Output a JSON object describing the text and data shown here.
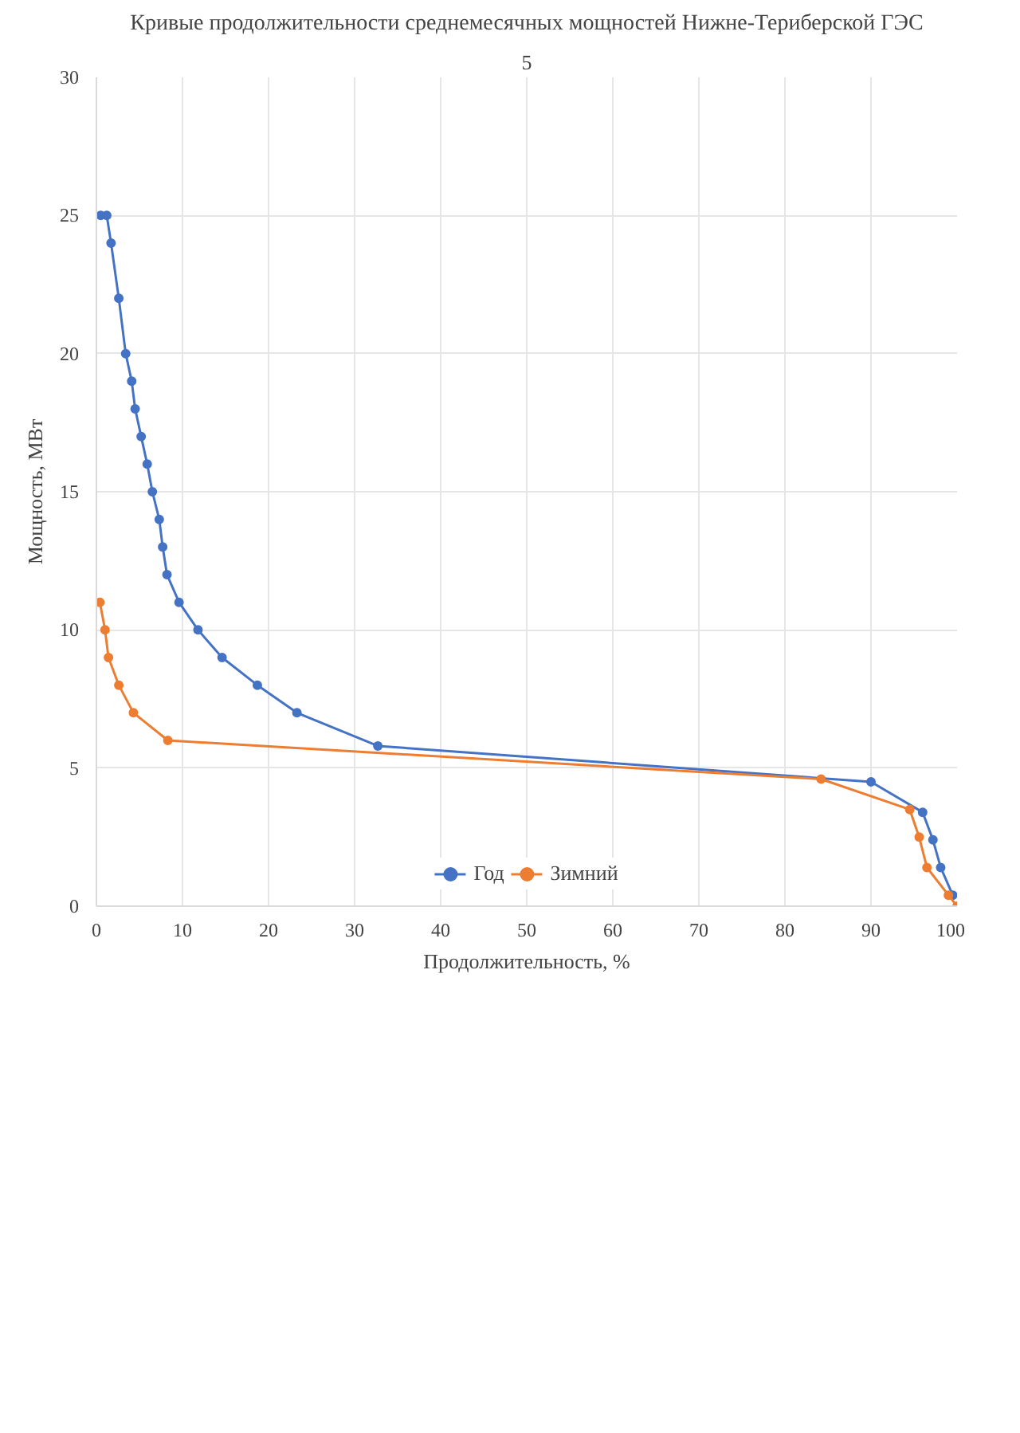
{
  "chart_data": {
    "type": "line",
    "title": "Кривые продолжительности среднемесячных мощностей Нижне-Териберской ГЭС",
    "xlabel": "Продолжительность, %",
    "ylabel": "Мощность, МВт",
    "annotations": [
      "5"
    ],
    "xlim": [
      0,
      100
    ],
    "xticks": [
      0,
      10,
      20,
      30,
      40,
      50,
      60,
      70,
      80,
      90,
      100
    ],
    "ylim": [
      0,
      30
    ],
    "yticks": [
      0,
      5,
      10,
      15,
      20,
      25,
      30
    ],
    "grid": true,
    "legend": "bottom",
    "marker": "circle",
    "line_style": "solid",
    "series": [
      {
        "name": "Год",
        "color": "#4472c4",
        "x": [
          0.5,
          1.2,
          1.7,
          2.6,
          3.4,
          4.1,
          4.5,
          5.2,
          5.9,
          6.5,
          7.3,
          7.7,
          8.2,
          9.6,
          11.8,
          14.6,
          18.7,
          23.3,
          32.7,
          90,
          96,
          97.2,
          98.1,
          99.5
        ],
        "values": [
          25,
          25,
          24,
          22,
          20,
          19,
          18,
          17,
          16,
          15,
          14,
          13,
          12,
          11,
          10,
          9,
          8,
          7,
          5.8,
          4.5,
          3.4,
          2.4,
          1.4,
          0.4
        ]
      },
      {
        "name": "Зимний",
        "color": "#ed7d31",
        "x": [
          0.4,
          1,
          1.4,
          2.6,
          4.3,
          8.3,
          84.2,
          94.5,
          95.6,
          96.5,
          99,
          100
        ],
        "values": [
          11,
          10,
          9,
          8,
          7,
          6,
          4.6,
          3.5,
          2.5,
          1.4,
          0.4,
          0
        ]
      }
    ]
  }
}
